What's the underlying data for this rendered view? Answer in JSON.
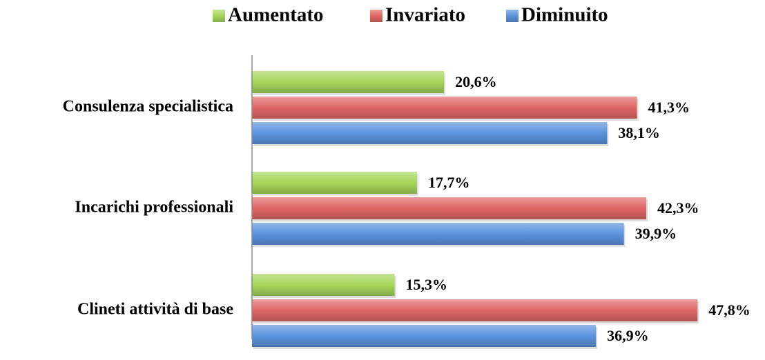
{
  "chart_data": {
    "type": "hbar",
    "categories": [
      "Consulenza specialistica",
      "Incarichi professionali",
      "Clineti attività di base"
    ],
    "series": [
      {
        "name": "Aumentato",
        "color": "#a6d65a",
        "values": [
          20.6,
          17.7,
          15.3
        ],
        "value_labels": [
          "20,6%",
          "17,7%",
          "15,3%"
        ]
      },
      {
        "name": "Invariato",
        "color": "#e06666",
        "values": [
          41.3,
          42.3,
          47.8
        ],
        "value_labels": [
          "41,3%",
          "42,3%",
          "47,8%"
        ]
      },
      {
        "name": "Diminuito",
        "color": "#5b93de",
        "values": [
          38.1,
          39.9,
          36.9
        ],
        "value_labels": [
          "38,1%",
          "39,9%",
          "36,9%"
        ]
      }
    ],
    "legend": "top"
  }
}
